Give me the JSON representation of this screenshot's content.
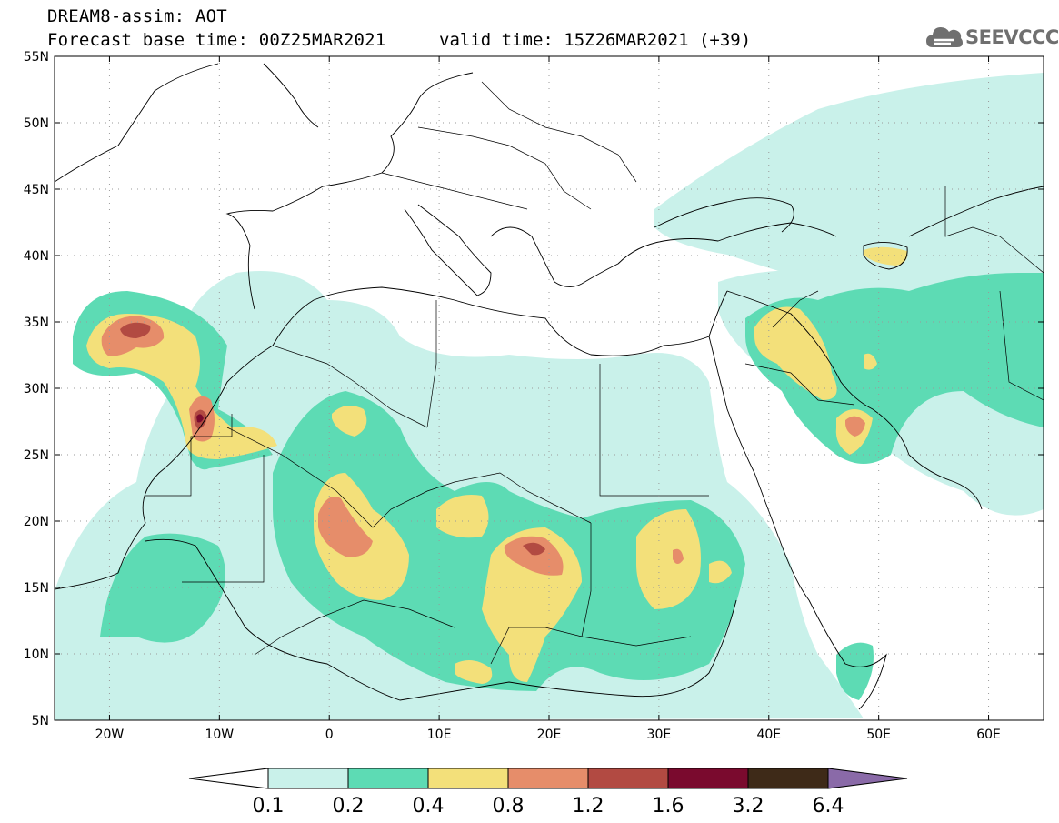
{
  "header": {
    "title": "DREAM8-assim: AOT",
    "base_time": "Forecast base time: 00Z25MAR2021",
    "valid_time": "valid time: 15Z26MAR2021 (+39)"
  },
  "logo": {
    "text": "SEEVCCC",
    "icon": "cloud-logo-icon"
  },
  "map": {
    "lat_labels": [
      "55N",
      "50N",
      "45N",
      "40N",
      "35N",
      "30N",
      "25N",
      "20N",
      "15N",
      "10N",
      "5N"
    ],
    "lon_labels": [
      "20W",
      "10W",
      "0",
      "10E",
      "20E",
      "30E",
      "40E",
      "50E",
      "60E"
    ],
    "extent": {
      "lon_min": -25,
      "lon_max": 65,
      "lat_min": 5,
      "lat_max": 55
    },
    "gridlines": "dotted"
  },
  "colorbar": {
    "labels": [
      "0.1",
      "0.2",
      "0.4",
      "0.8",
      "1.2",
      "1.6",
      "3.2",
      "6.4"
    ],
    "colors": [
      "#c9f1ea",
      "#5ddbb4",
      "#f3e07a",
      "#e68d6a",
      "#b24a42",
      "#7a0a2e",
      "#3e2a18",
      "#8a6aa8"
    ],
    "under_color": "#ffffff",
    "over_color": "#8a6aa8"
  }
}
